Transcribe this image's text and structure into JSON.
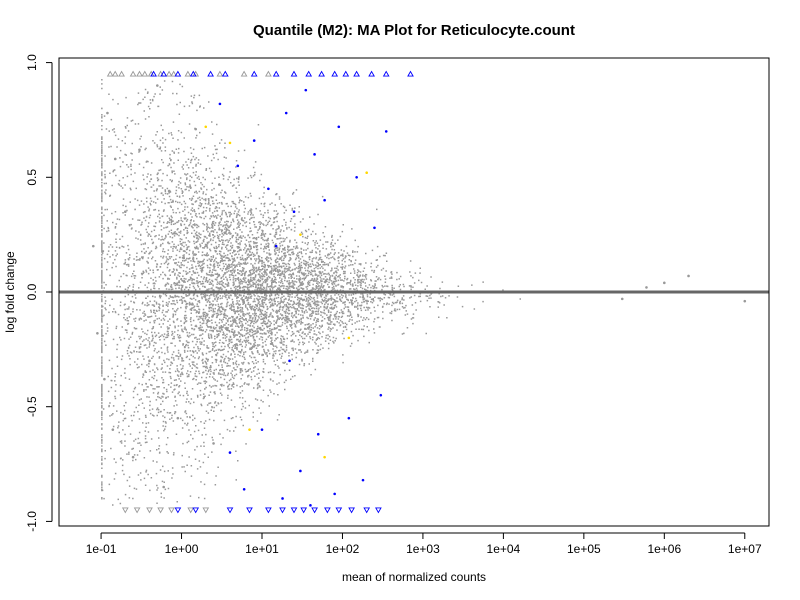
{
  "chart_data": {
    "type": "scatter",
    "title": "Quantile (M2): MA Plot for Reticulocyte.count",
    "xlabel": "mean of normalized counts",
    "ylabel": "log fold change",
    "x_scale": "log10",
    "xlim": [
      0.03,
      20000000
    ],
    "ylim": [
      -1.02,
      1.02
    ],
    "x_ticks": [
      {
        "value": 0.1,
        "label": "1e-01"
      },
      {
        "value": 1,
        "label": "1e+00"
      },
      {
        "value": 10,
        "label": "1e+01"
      },
      {
        "value": 100,
        "label": "1e+02"
      },
      {
        "value": 1000,
        "label": "1e+03"
      },
      {
        "value": 10000,
        "label": "1e+04"
      },
      {
        "value": 100000,
        "label": "1e+05"
      },
      {
        "value": 1000000,
        "label": "1e+06"
      },
      {
        "value": 10000000,
        "label": "1e+07"
      }
    ],
    "y_ticks": [
      {
        "value": -1.0,
        "label": "-1.0"
      },
      {
        "value": -0.5,
        "label": "-0.5"
      },
      {
        "value": 0.0,
        "label": "0.0"
      },
      {
        "value": 0.5,
        "label": "0.5"
      },
      {
        "value": 1.0,
        "label": "1.0"
      }
    ],
    "reference_line": {
      "y": 0,
      "color": "#666666"
    },
    "grid": false,
    "colors": {
      "not_significant": "#999999",
      "significant": "#0000ff",
      "highlight": "#ffd700"
    },
    "series": [
      {
        "points": [
          [
            0.12,
            0.78
          ],
          [
            0.15,
            0.58
          ],
          [
            0.2,
            0.35
          ],
          [
            0.3,
            0.62
          ],
          [
            0.5,
            0.9
          ],
          [
            0.7,
            0.44
          ],
          [
            1.5,
            0.71
          ],
          [
            0.11,
            -0.38
          ],
          [
            0.14,
            -0.6
          ],
          [
            0.25,
            -0.72
          ],
          [
            0.4,
            -0.3
          ],
          [
            0.6,
            -0.85
          ],
          [
            0.9,
            -0.55
          ],
          [
            2.5,
            -0.66
          ],
          [
            0.08,
            0.2
          ],
          [
            0.09,
            -0.18
          ],
          [
            1000000,
            0.04
          ],
          [
            10000000,
            -0.04
          ],
          [
            2000000,
            0.07
          ],
          [
            600000,
            0.02
          ],
          [
            300000,
            -0.03
          ]
        ]
      },
      {
        "points": [
          [
            3,
            0.82
          ],
          [
            5,
            0.55
          ],
          [
            8,
            0.66
          ],
          [
            12,
            0.45
          ],
          [
            20,
            0.78
          ],
          [
            35,
            0.88
          ],
          [
            60,
            0.4
          ],
          [
            90,
            0.72
          ],
          [
            150,
            0.5
          ],
          [
            250,
            0.28
          ],
          [
            350,
            0.7
          ],
          [
            25,
            0.35
          ],
          [
            45,
            0.6
          ],
          [
            15,
            0.2
          ],
          [
            4,
            -0.7
          ],
          [
            6,
            -0.86
          ],
          [
            10,
            -0.6
          ],
          [
            18,
            -0.9
          ],
          [
            30,
            -0.78
          ],
          [
            50,
            -0.62
          ],
          [
            80,
            -0.88
          ],
          [
            120,
            -0.55
          ],
          [
            180,
            -0.82
          ],
          [
            300,
            -0.45
          ],
          [
            40,
            -0.93
          ],
          [
            22,
            -0.3
          ]
        ]
      },
      {
        "points": [
          [
            2,
            0.72
          ],
          [
            4,
            0.65
          ],
          [
            30,
            0.25
          ],
          [
            200,
            0.52
          ],
          [
            7,
            -0.6
          ],
          [
            60,
            -0.72
          ],
          [
            120,
            -0.2
          ]
        ]
      },
      {
        "points": [
          [
            0.13,
            0.95
          ],
          [
            0.15,
            0.95
          ],
          [
            0.18,
            0.95
          ],
          [
            0.25,
            0.95
          ],
          [
            0.3,
            0.95
          ],
          [
            0.35,
            0.95
          ],
          [
            0.42,
            0.95
          ],
          [
            0.55,
            0.95
          ],
          [
            0.7,
            0.95
          ],
          [
            0.8,
            0.95
          ],
          [
            1.2,
            0.95
          ],
          [
            1.5,
            0.95
          ],
          [
            3,
            0.95
          ],
          [
            6,
            0.95
          ],
          [
            12,
            0.95
          ],
          [
            0.2,
            -0.95
          ],
          [
            0.28,
            -0.95
          ],
          [
            0.4,
            -0.95
          ],
          [
            0.55,
            -0.95
          ],
          [
            0.75,
            -0.95
          ],
          [
            1.3,
            -0.95
          ],
          [
            2,
            -0.95
          ]
        ]
      },
      {
        "points": [
          [
            0.45,
            0.95
          ],
          [
            0.6,
            0.95
          ],
          [
            0.9,
            0.95
          ],
          [
            1.4,
            0.95
          ],
          [
            2.3,
            0.95
          ],
          [
            3.5,
            0.95
          ],
          [
            8,
            0.95
          ],
          [
            15,
            0.95
          ],
          [
            25,
            0.95
          ],
          [
            38,
            0.95
          ],
          [
            55,
            0.95
          ],
          [
            80,
            0.95
          ],
          [
            110,
            0.95
          ],
          [
            150,
            0.95
          ],
          [
            230,
            0.95
          ],
          [
            350,
            0.95
          ],
          [
            700,
            0.95
          ],
          [
            0.9,
            -0.95
          ],
          [
            1.5,
            -0.95
          ],
          [
            4,
            -0.95
          ],
          [
            7,
            -0.95
          ],
          [
            12,
            -0.95
          ],
          [
            18,
            -0.95
          ],
          [
            25,
            -0.95
          ],
          [
            33,
            -0.95
          ],
          [
            45,
            -0.95
          ],
          [
            65,
            -0.95
          ],
          [
            90,
            -0.95
          ],
          [
            130,
            -0.95
          ],
          [
            200,
            -0.95
          ],
          [
            280,
            -0.95
          ]
        ]
      }
    ]
  }
}
